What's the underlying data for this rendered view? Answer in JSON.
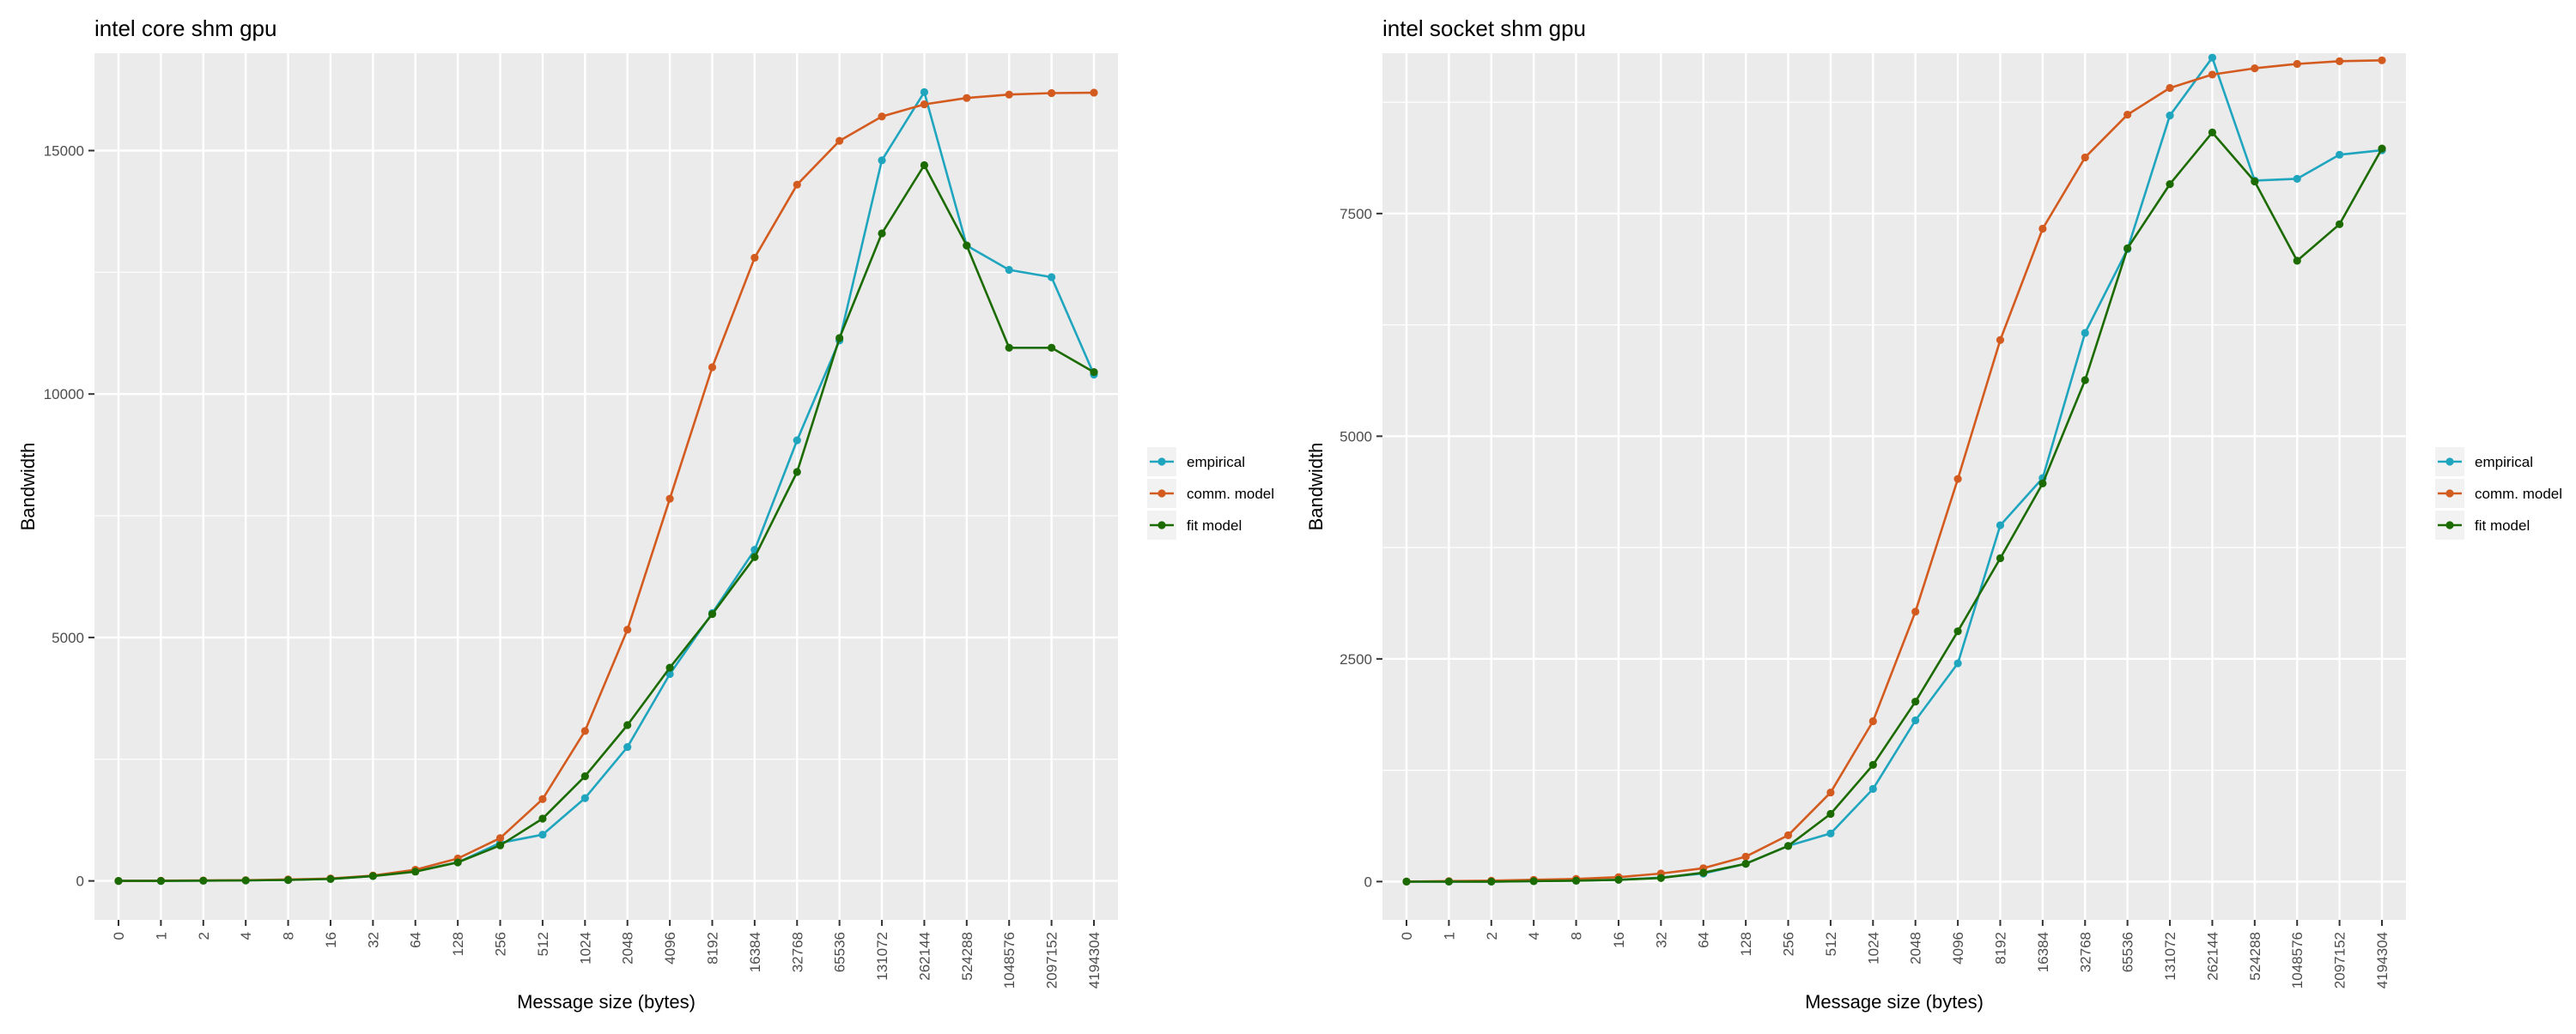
{
  "chart_data": [
    {
      "type": "line",
      "title": "intel core shm gpu",
      "xlabel": "Message size (bytes)",
      "ylabel": "Bandwidth",
      "categories": [
        "0",
        "1",
        "2",
        "4",
        "8",
        "16",
        "32",
        "64",
        "128",
        "256",
        "512",
        "1024",
        "2048",
        "4096",
        "8192",
        "16384",
        "32768",
        "65536",
        "131072",
        "262144",
        "524288",
        "1048576",
        "2097152",
        "4194304"
      ],
      "yticks": [
        0,
        5000,
        10000,
        15000
      ],
      "ylim": [
        -800,
        17000
      ],
      "grid": true,
      "legend": "right",
      "series": [
        {
          "name": "empirical",
          "color": "#1FA5BE",
          "values": [
            0,
            0,
            5,
            10,
            20,
            40,
            100,
            200,
            380,
            780,
            950,
            1700,
            2750,
            4250,
            5500,
            6800,
            9050,
            11100,
            14800,
            16200,
            13050,
            12550,
            12400,
            10400
          ]
        },
        {
          "name": "comm. model",
          "color": "#D35B1F",
          "values": [
            0,
            5,
            10,
            15,
            30,
            50,
            110,
            230,
            460,
            880,
            1680,
            3080,
            5160,
            7850,
            10550,
            12800,
            14300,
            15200,
            15700,
            15950,
            16080,
            16150,
            16180,
            16190
          ]
        },
        {
          "name": "fit model",
          "color": "#1B6B00",
          "values": [
            0,
            0,
            5,
            10,
            20,
            40,
            100,
            190,
            380,
            730,
            1280,
            2150,
            3200,
            4380,
            5480,
            6650,
            8400,
            11150,
            13300,
            14700,
            13050,
            10950,
            10950,
            10450
          ]
        }
      ]
    },
    {
      "type": "line",
      "title": "intel socket shm gpu",
      "xlabel": "Message size (bytes)",
      "ylabel": "Bandwidth",
      "categories": [
        "0",
        "1",
        "2",
        "4",
        "8",
        "16",
        "32",
        "64",
        "128",
        "256",
        "512",
        "1024",
        "2048",
        "4096",
        "8192",
        "16384",
        "32768",
        "65536",
        "131072",
        "262144",
        "524288",
        "1048576",
        "2097152",
        "4194304"
      ],
      "yticks": [
        0,
        2500,
        5000,
        7500
      ],
      "ylim": [
        -430,
        9300
      ],
      "grid": true,
      "legend": "right",
      "series": [
        {
          "name": "empirical",
          "color": "#1FA5BE",
          "values": [
            0,
            0,
            0,
            5,
            10,
            20,
            45,
            90,
            200,
            400,
            540,
            1040,
            1810,
            2450,
            4000,
            4530,
            6160,
            7100,
            8600,
            9250,
            7870,
            7890,
            8160,
            8210
          ]
        },
        {
          "name": "comm. model",
          "color": "#D35B1F",
          "values": [
            0,
            5,
            10,
            20,
            30,
            50,
            90,
            150,
            280,
            520,
            1000,
            1800,
            3030,
            4520,
            6080,
            7330,
            8130,
            8610,
            8910,
            9060,
            9130,
            9180,
            9210,
            9220
          ]
        },
        {
          "name": "fit model",
          "color": "#1B6B00",
          "values": [
            0,
            0,
            0,
            5,
            10,
            20,
            40,
            100,
            200,
            400,
            760,
            1310,
            2020,
            2810,
            3630,
            4470,
            5630,
            7110,
            7830,
            8410,
            7860,
            6970,
            7380,
            8230
          ]
        }
      ]
    }
  ]
}
